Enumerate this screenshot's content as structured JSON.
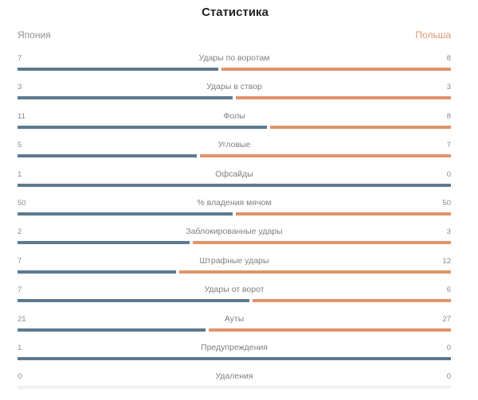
{
  "header": {
    "title": "Статистика",
    "team_left": "Япония",
    "team_right": "Польша"
  },
  "colors": {
    "left_team": "#5d7a90",
    "right_team": "#e1936b"
  },
  "stats": [
    {
      "label": "Удары по воротам",
      "left": "7",
      "right": "8"
    },
    {
      "label": "Удары в створ",
      "left": "3",
      "right": "3"
    },
    {
      "label": "Фолы",
      "left": "11",
      "right": "8"
    },
    {
      "label": "Угловые",
      "left": "5",
      "right": "7"
    },
    {
      "label": "Офсайды",
      "left": "1",
      "right": "0"
    },
    {
      "label": "% владения мячом",
      "left": "50",
      "right": "50"
    },
    {
      "label": "Заблокированные удары",
      "left": "2",
      "right": "3"
    },
    {
      "label": "Штрафные удары",
      "left": "7",
      "right": "12"
    },
    {
      "label": "Удары от ворот",
      "left": "7",
      "right": "6"
    },
    {
      "label": "Ауты",
      "left": "21",
      "right": "27"
    },
    {
      "label": "Предупреждения",
      "left": "1",
      "right": "0"
    },
    {
      "label": "Удаления",
      "left": "0",
      "right": "0"
    }
  ]
}
